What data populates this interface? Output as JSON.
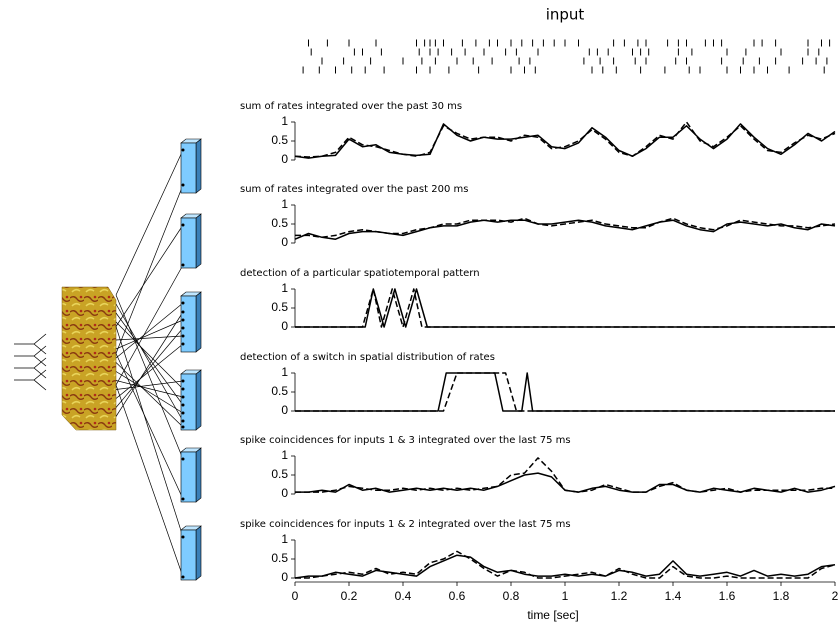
{
  "chart_data": [
    {
      "type": "raster",
      "title": "input",
      "xlim": [
        0,
        2
      ],
      "rows": [
        [
          0.05,
          0.12,
          0.2,
          0.3,
          0.45,
          0.48,
          0.5,
          0.52,
          0.55,
          0.62,
          0.67,
          0.72,
          0.75,
          0.8,
          0.84,
          0.88,
          0.92,
          0.96,
          1.0,
          1.05,
          1.18,
          1.22,
          1.27,
          1.3,
          1.38,
          1.42,
          1.45,
          1.52,
          1.55,
          1.58,
          1.7,
          1.73,
          1.78,
          1.9,
          1.95,
          1.98
        ],
        [
          0.06,
          0.22,
          0.25,
          0.32,
          0.46,
          0.5,
          0.53,
          0.58,
          0.63,
          0.7,
          0.78,
          0.82,
          0.9,
          1.09,
          1.12,
          1.16,
          1.25,
          1.28,
          1.31,
          1.42,
          1.47,
          1.6,
          1.67,
          1.8,
          1.9,
          1.94
        ],
        [
          0.1,
          0.18,
          0.28,
          0.4,
          0.47,
          0.52,
          0.6,
          0.66,
          0.73,
          0.83,
          0.87,
          1.07,
          1.13,
          1.18,
          1.26,
          1.3,
          1.41,
          1.45,
          1.58,
          1.66,
          1.72,
          1.78,
          1.88,
          1.93,
          1.97
        ],
        [
          0.03,
          0.09,
          0.15,
          0.21,
          0.26,
          0.33,
          0.45,
          0.5,
          0.57,
          0.68,
          0.8,
          0.85,
          0.89,
          1.1,
          1.14,
          1.19,
          1.28,
          1.37,
          1.46,
          1.5,
          1.6,
          1.65,
          1.7,
          1.75,
          1.83,
          1.96
        ]
      ]
    },
    {
      "type": "line",
      "title": "sum of rates integrated over the past 30 ms",
      "xlim": [
        0,
        2
      ],
      "ylim": [
        0,
        1
      ],
      "yticks": [
        0,
        0.5,
        1
      ],
      "x": [
        0,
        0.05,
        0.1,
        0.15,
        0.2,
        0.25,
        0.3,
        0.35,
        0.4,
        0.45,
        0.5,
        0.55,
        0.6,
        0.65,
        0.7,
        0.75,
        0.8,
        0.85,
        0.9,
        0.95,
        1,
        1.05,
        1.1,
        1.15,
        1.2,
        1.25,
        1.3,
        1.35,
        1.4,
        1.45,
        1.5,
        1.55,
        1.6,
        1.65,
        1.7,
        1.75,
        1.8,
        1.85,
        1.9,
        1.95,
        2
      ],
      "series": [
        {
          "color": "#000",
          "style": "solid",
          "values": [
            0.1,
            0.05,
            0.1,
            0.12,
            0.55,
            0.35,
            0.4,
            0.2,
            0.15,
            0.12,
            0.15,
            0.95,
            0.65,
            0.5,
            0.6,
            0.55,
            0.55,
            0.6,
            0.65,
            0.35,
            0.3,
            0.45,
            0.85,
            0.6,
            0.25,
            0.1,
            0.3,
            0.6,
            0.6,
            0.9,
            0.55,
            0.3,
            0.55,
            0.95,
            0.6,
            0.3,
            0.15,
            0.4,
            0.7,
            0.5,
            0.75
          ]
        },
        {
          "color": "#000",
          "style": "dashed",
          "values": [
            0.1,
            0.08,
            0.1,
            0.2,
            0.6,
            0.4,
            0.35,
            0.25,
            0.15,
            0.1,
            0.2,
            0.9,
            0.7,
            0.55,
            0.6,
            0.6,
            0.5,
            0.65,
            0.6,
            0.3,
            0.35,
            0.5,
            0.8,
            0.55,
            0.2,
            0.1,
            0.35,
            0.65,
            0.55,
            1,
            0.5,
            0.35,
            0.6,
            0.9,
            0.55,
            0.25,
            0.2,
            0.45,
            0.65,
            0.55,
            0.7
          ]
        }
      ]
    },
    {
      "type": "line",
      "title": "sum of rates integrated over the past 200 ms",
      "xlim": [
        0,
        2
      ],
      "ylim": [
        0,
        1
      ],
      "yticks": [
        0,
        0.5,
        1
      ],
      "x": [
        0,
        0.05,
        0.1,
        0.15,
        0.2,
        0.25,
        0.3,
        0.35,
        0.4,
        0.45,
        0.5,
        0.55,
        0.6,
        0.65,
        0.7,
        0.75,
        0.8,
        0.85,
        0.9,
        0.95,
        1,
        1.05,
        1.1,
        1.15,
        1.2,
        1.25,
        1.3,
        1.35,
        1.4,
        1.45,
        1.5,
        1.55,
        1.6,
        1.65,
        1.7,
        1.75,
        1.8,
        1.85,
        1.9,
        1.95,
        2
      ],
      "series": [
        {
          "color": "#000",
          "style": "solid",
          "values": [
            0.1,
            0.25,
            0.15,
            0.1,
            0.25,
            0.3,
            0.3,
            0.25,
            0.2,
            0.3,
            0.4,
            0.45,
            0.45,
            0.55,
            0.6,
            0.55,
            0.6,
            0.6,
            0.5,
            0.5,
            0.55,
            0.6,
            0.55,
            0.45,
            0.4,
            0.35,
            0.45,
            0.55,
            0.6,
            0.45,
            0.35,
            0.3,
            0.5,
            0.55,
            0.5,
            0.45,
            0.5,
            0.4,
            0.35,
            0.5,
            0.45
          ]
        },
        {
          "color": "#000",
          "style": "dashed",
          "values": [
            0.2,
            0.2,
            0.15,
            0.2,
            0.3,
            0.35,
            0.3,
            0.25,
            0.25,
            0.35,
            0.4,
            0.5,
            0.5,
            0.6,
            0.6,
            0.6,
            0.55,
            0.65,
            0.5,
            0.45,
            0.5,
            0.55,
            0.6,
            0.5,
            0.45,
            0.4,
            0.4,
            0.55,
            0.65,
            0.5,
            0.4,
            0.35,
            0.45,
            0.6,
            0.55,
            0.5,
            0.45,
            0.45,
            0.4,
            0.45,
            0.5
          ]
        }
      ]
    },
    {
      "type": "line",
      "title": "detection of a particular spatiotemporal pattern",
      "xlim": [
        0,
        2
      ],
      "ylim": [
        0,
        1
      ],
      "yticks": [
        0,
        0.5,
        1
      ],
      "series": [
        {
          "color": "#000",
          "style": "solid",
          "x": [
            0,
            0.26,
            0.29,
            0.33,
            0.37,
            0.41,
            0.45,
            0.49,
            2
          ],
          "values": [
            0,
            0,
            1,
            0,
            1,
            0,
            1,
            0,
            0
          ]
        },
        {
          "color": "#000",
          "style": "dashed",
          "x": [
            0,
            0.25,
            0.29,
            0.32,
            0.36,
            0.4,
            0.44,
            0.47,
            2
          ],
          "values": [
            0,
            0,
            1,
            0,
            1,
            0,
            1,
            0,
            0
          ]
        }
      ]
    },
    {
      "type": "line",
      "title": "detection of a switch in spatial distribution of rates",
      "xlim": [
        0,
        2
      ],
      "ylim": [
        0,
        1
      ],
      "yticks": [
        0,
        0.5,
        1
      ],
      "series": [
        {
          "color": "#000",
          "style": "solid",
          "x": [
            0,
            0.53,
            0.56,
            0.74,
            0.77,
            0.84,
            0.86,
            0.88,
            2
          ],
          "values": [
            0,
            0,
            1,
            1,
            0,
            0,
            1,
            0,
            0
          ]
        },
        {
          "color": "#000",
          "style": "dashed",
          "x": [
            0,
            0.55,
            0.6,
            0.78,
            0.82,
            2
          ],
          "values": [
            0,
            0,
            1,
            1,
            0,
            0
          ]
        }
      ]
    },
    {
      "type": "line",
      "title": "spike coincidences for inputs 1 & 3 integrated over the last 75 ms",
      "xlim": [
        0,
        2
      ],
      "ylim": [
        0,
        1
      ],
      "yticks": [
        0,
        0.5,
        1
      ],
      "x": [
        0,
        0.05,
        0.1,
        0.15,
        0.2,
        0.25,
        0.3,
        0.35,
        0.4,
        0.45,
        0.5,
        0.55,
        0.6,
        0.65,
        0.7,
        0.75,
        0.8,
        0.85,
        0.9,
        0.95,
        1,
        1.05,
        1.1,
        1.15,
        1.2,
        1.25,
        1.3,
        1.35,
        1.4,
        1.45,
        1.5,
        1.55,
        1.6,
        1.65,
        1.7,
        1.75,
        1.8,
        1.85,
        1.9,
        1.95,
        2
      ],
      "series": [
        {
          "color": "#000",
          "style": "solid",
          "values": [
            0.05,
            0.05,
            0.1,
            0.05,
            0.25,
            0.1,
            0.15,
            0.05,
            0.1,
            0.15,
            0.1,
            0.15,
            0.1,
            0.15,
            0.1,
            0.2,
            0.35,
            0.5,
            0.55,
            0.45,
            0.1,
            0.05,
            0.15,
            0.2,
            0.1,
            0.05,
            0.05,
            0.25,
            0.25,
            0.1,
            0.05,
            0.15,
            0.1,
            0.05,
            0.15,
            0.1,
            0.05,
            0.15,
            0.05,
            0.1,
            0.2
          ]
        },
        {
          "color": "#000",
          "style": "dashed",
          "values": [
            0.05,
            0.05,
            0.05,
            0.1,
            0.2,
            0.15,
            0.1,
            0.1,
            0.15,
            0.1,
            0.15,
            0.1,
            0.15,
            0.1,
            0.15,
            0.2,
            0.5,
            0.55,
            0.95,
            0.6,
            0.1,
            0.05,
            0.1,
            0.25,
            0.15,
            0.05,
            0.05,
            0.2,
            0.3,
            0.1,
            0.05,
            0.1,
            0.15,
            0.05,
            0.1,
            0.1,
            0.1,
            0.1,
            0.1,
            0.15,
            0.15
          ]
        }
      ]
    },
    {
      "type": "line",
      "title": "spike coincidences for inputs 1 & 2 integrated over the last 75 ms",
      "xlim": [
        0,
        2
      ],
      "ylim": [
        0,
        1
      ],
      "yticks": [
        0,
        0.5,
        1
      ],
      "xticks": [
        0,
        0.2,
        0.4,
        0.6,
        0.8,
        1,
        1.2,
        1.4,
        1.6,
        1.8,
        2
      ],
      "xlabel": "time [sec]",
      "x": [
        0,
        0.05,
        0.1,
        0.15,
        0.2,
        0.25,
        0.3,
        0.35,
        0.4,
        0.45,
        0.5,
        0.55,
        0.6,
        0.65,
        0.7,
        0.75,
        0.8,
        0.85,
        0.9,
        0.95,
        1,
        1.05,
        1.1,
        1.15,
        1.2,
        1.25,
        1.3,
        1.35,
        1.4,
        1.45,
        1.5,
        1.55,
        1.6,
        1.65,
        1.7,
        1.75,
        1.8,
        1.85,
        1.9,
        1.95,
        2
      ],
      "series": [
        {
          "color": "#000",
          "style": "solid",
          "values": [
            0,
            0.05,
            0.05,
            0.15,
            0.1,
            0.05,
            0.2,
            0.15,
            0.1,
            0.05,
            0.3,
            0.45,
            0.6,
            0.55,
            0.3,
            0.15,
            0.2,
            0.1,
            0.05,
            0.05,
            0.1,
            0.05,
            0.1,
            0.05,
            0.2,
            0.15,
            0.05,
            0.1,
            0.45,
            0.1,
            0.05,
            0.1,
            0.15,
            0.05,
            0.2,
            0.05,
            0.1,
            0.05,
            0.1,
            0.3,
            0.35
          ]
        },
        {
          "color": "#000",
          "style": "dashed",
          "values": [
            0,
            0,
            0.05,
            0.1,
            0.15,
            0.1,
            0.25,
            0.1,
            0.15,
            0.1,
            0.4,
            0.5,
            0.7,
            0.5,
            0.25,
            0.05,
            0.2,
            0.15,
            0,
            0,
            0.05,
            0.1,
            0.15,
            0.05,
            0.25,
            0.1,
            0,
            0,
            0.3,
            0.05,
            0,
            0,
            0.05,
            0,
            0,
            0,
            0,
            0,
            0,
            0.25,
            0.35
          ]
        }
      ]
    }
  ]
}
